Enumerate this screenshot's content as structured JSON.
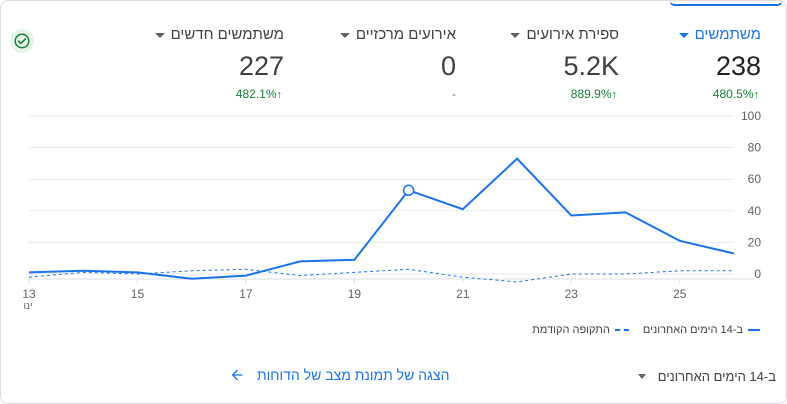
{
  "metrics": [
    {
      "label": "משתמשים",
      "value": "238",
      "change": "480.5%",
      "active": true
    },
    {
      "label": "ספירת אירועים",
      "value": "5.2K",
      "change": "889.9%",
      "active": false
    },
    {
      "label": "אירועים מרכזיים",
      "value": "0",
      "change": "-",
      "active": false
    },
    {
      "label": "משתמשים חדשים",
      "value": "227",
      "change": "482.1%",
      "active": false
    }
  ],
  "chart_data": {
    "type": "line",
    "x": [
      13,
      14,
      15,
      16,
      17,
      18,
      19,
      20,
      21,
      22,
      23,
      24,
      25,
      26
    ],
    "x_tick_labels": [
      "13",
      "15",
      "17",
      "19",
      "21",
      "23",
      "25"
    ],
    "x_sublabel": "ינו",
    "y_ticks": [
      0,
      20,
      40,
      60,
      80,
      100
    ],
    "ylim": [
      0,
      100
    ],
    "y_axis_side": "right",
    "grid": true,
    "series": [
      {
        "name": "ב-14 הימים האחרונים",
        "style": "solid",
        "values": [
          1,
          2,
          1,
          -3,
          -1,
          8,
          9,
          53,
          41,
          73,
          37,
          39,
          21,
          13
        ]
      },
      {
        "name": "התקופה הקודמת",
        "style": "dashed",
        "values": [
          -2,
          1,
          0,
          2,
          3,
          -1,
          1,
          3,
          -2,
          -5,
          0,
          0,
          2,
          2
        ]
      }
    ],
    "highlight_point": {
      "x": 20,
      "y": 53
    },
    "color": "#1a73e8"
  },
  "legend": {
    "current": "ב-14 הימים האחרונים",
    "previous": "התקופה הקודמת"
  },
  "footer": {
    "range_label": "ב-14 הימים האחרונים",
    "link_label": "הצגה של תמונת מצב של הדוחות"
  },
  "icons": {
    "status": "check-circle-icon",
    "link_arrow": "arrow-left-icon"
  }
}
